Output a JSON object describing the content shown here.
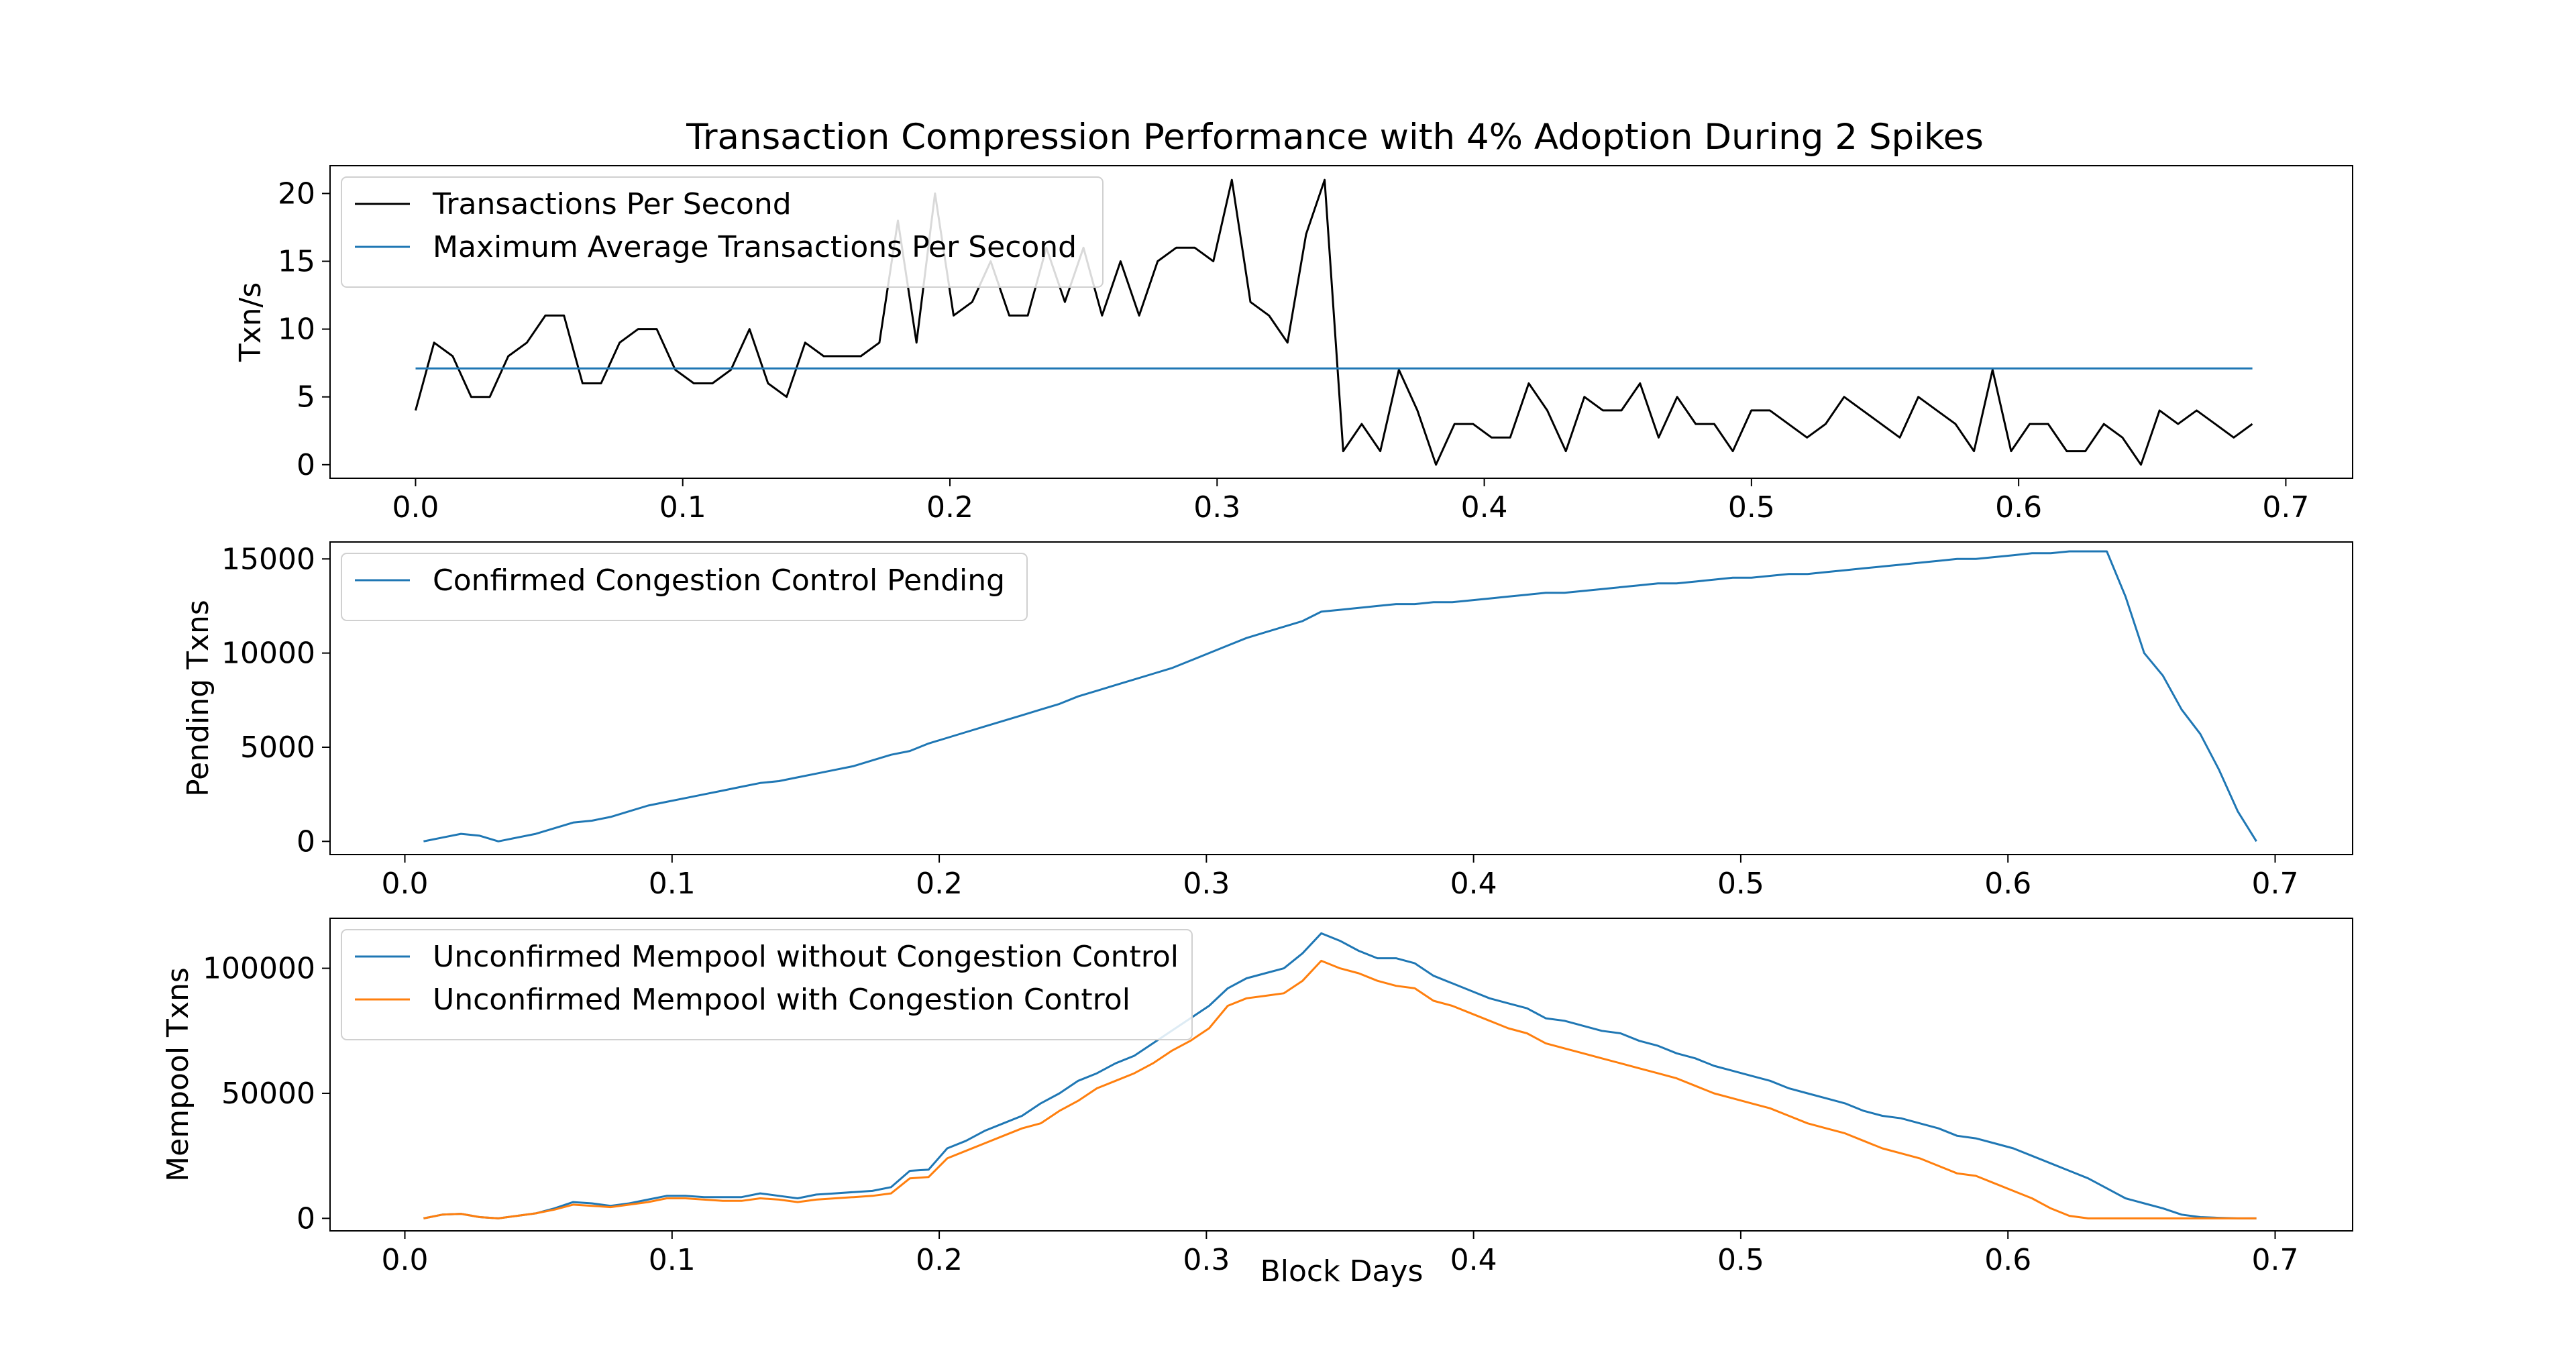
{
  "chart_data": {
    "title": "Transaction Compression Performance with 4% Adoption During 2 Spikes",
    "subplots": [
      {
        "type": "line",
        "ylabel": "Txn/s",
        "xlim": [
          -0.032,
          0.725
        ],
        "ylim": [
          -1.0,
          22.05
        ],
        "xticks": [
          0.0,
          0.1,
          0.2,
          0.3,
          0.4,
          0.5,
          0.6,
          0.7
        ],
        "xtick_labels": [
          "0.0",
          "0.1",
          "0.2",
          "0.3",
          "0.4",
          "0.5",
          "0.6",
          "0.7"
        ],
        "yticks": [
          0,
          5,
          10,
          15,
          20
        ],
        "ytick_labels": [
          "0",
          "5",
          "10",
          "15",
          "20"
        ],
        "legend_position": "upper-left",
        "series": [
          {
            "name": "Transactions Per Second",
            "color": "#000000",
            "x0": 0.0,
            "dx": 0.006944,
            "values": [
              4,
              9,
              8,
              5,
              5,
              8,
              9,
              11,
              11,
              6,
              6,
              9,
              10,
              10,
              7,
              6,
              6,
              7,
              10,
              6,
              5,
              9,
              8,
              8,
              8,
              9,
              18,
              9,
              20,
              11,
              12,
              15,
              11,
              11,
              16,
              12,
              16,
              11,
              15,
              11,
              15,
              16,
              16,
              15,
              21,
              12,
              11,
              9,
              17,
              21,
              1,
              3,
              1,
              7,
              4,
              0,
              3,
              3,
              2,
              2,
              6,
              4,
              1,
              5,
              4,
              4,
              6,
              2,
              5,
              3,
              3,
              1,
              4,
              4,
              3,
              2,
              3,
              5,
              4,
              3,
              2,
              5,
              4,
              3,
              1,
              7,
              1,
              3,
              3,
              1,
              1,
              3,
              2,
              0,
              4,
              3,
              4,
              3,
              2,
              3
            ]
          },
          {
            "name": "Maximum Average Transactions Per Second",
            "color": "#1f77b4",
            "x": [
              0.0,
              0.6875
            ],
            "values": [
              7.1,
              7.1
            ]
          }
        ]
      },
      {
        "type": "line",
        "ylabel": "Pending Txns",
        "xlim": [
          -0.028,
          0.729
        ],
        "ylim": [
          -700,
          15900
        ],
        "xticks": [
          0.0,
          0.1,
          0.2,
          0.3,
          0.4,
          0.5,
          0.6,
          0.7
        ],
        "xtick_labels": [
          "0.0",
          "0.1",
          "0.2",
          "0.3",
          "0.4",
          "0.5",
          "0.6",
          "0.7"
        ],
        "yticks": [
          0,
          5000,
          10000,
          15000
        ],
        "ytick_labels": [
          "0",
          "5000",
          "10000",
          "15000"
        ],
        "legend_position": "upper-left",
        "series": [
          {
            "name": "Confirmed Congestion Control Pending",
            "color": "#1f77b4",
            "x": [
              0.007,
              0.014,
              0.021,
              0.028,
              0.035,
              0.042,
              0.049,
              0.056,
              0.063,
              0.07,
              0.077,
              0.084,
              0.091,
              0.098,
              0.105,
              0.112,
              0.119,
              0.126,
              0.133,
              0.14,
              0.147,
              0.154,
              0.161,
              0.168,
              0.175,
              0.182,
              0.189,
              0.196,
              0.203,
              0.21,
              0.217,
              0.224,
              0.231,
              0.238,
              0.245,
              0.252,
              0.259,
              0.266,
              0.273,
              0.28,
              0.287,
              0.294,
              0.301,
              0.308,
              0.315,
              0.322,
              0.329,
              0.336,
              0.343,
              0.35,
              0.357,
              0.364,
              0.371,
              0.378,
              0.385,
              0.392,
              0.399,
              0.406,
              0.413,
              0.42,
              0.427,
              0.434,
              0.441,
              0.448,
              0.455,
              0.462,
              0.469,
              0.476,
              0.483,
              0.49,
              0.497,
              0.504,
              0.511,
              0.518,
              0.525,
              0.532,
              0.539,
              0.546,
              0.553,
              0.56,
              0.567,
              0.574,
              0.581,
              0.588,
              0.595,
              0.602,
              0.609,
              0.616,
              0.623,
              0.63,
              0.637,
              0.644,
              0.651,
              0.658,
              0.665,
              0.672,
              0.679,
              0.686,
              0.693
            ],
            "values": [
              0,
              200,
              400,
              300,
              0,
              200,
              400,
              700,
              1000,
              1100,
              1300,
              1600,
              1900,
              2100,
              2300,
              2500,
              2700,
              2900,
              3100,
              3200,
              3400,
              3600,
              3800,
              4000,
              4300,
              4600,
              4800,
              5200,
              5500,
              5800,
              6100,
              6400,
              6700,
              7000,
              7300,
              7700,
              8000,
              8300,
              8600,
              8900,
              9200,
              9600,
              10000,
              10400,
              10800,
              11100,
              11400,
              11700,
              12200,
              12300,
              12400,
              12500,
              12600,
              12600,
              12700,
              12700,
              12800,
              12900,
              13000,
              13100,
              13200,
              13200,
              13300,
              13400,
              13500,
              13600,
              13700,
              13700,
              13800,
              13900,
              14000,
              14000,
              14100,
              14200,
              14200,
              14300,
              14400,
              14500,
              14600,
              14700,
              14800,
              14900,
              15000,
              15000,
              15100,
              15200,
              15300,
              15300,
              15400,
              15400,
              15400,
              13000,
              10000,
              8800,
              7000,
              5700,
              3800,
              1600,
              0
            ]
          }
        ]
      },
      {
        "type": "line",
        "ylabel": "Mempool Txns",
        "xlabel": "Block Days",
        "xlim": [
          -0.028,
          0.729
        ],
        "ylim": [
          -5000,
          120000
        ],
        "xticks": [
          0.0,
          0.1,
          0.2,
          0.3,
          0.4,
          0.5,
          0.6,
          0.7
        ],
        "xtick_labels": [
          "0.0",
          "0.1",
          "0.2",
          "0.3",
          "0.4",
          "0.5",
          "0.6",
          "0.7"
        ],
        "yticks": [
          0,
          50000,
          100000
        ],
        "ytick_labels": [
          "0",
          "50000",
          "100000"
        ],
        "legend_position": "upper-left",
        "series": [
          {
            "name": "Unconfirmed Mempool without Congestion Control",
            "color": "#1f77b4",
            "x": [
              0.007,
              0.014,
              0.021,
              0.028,
              0.035,
              0.042,
              0.049,
              0.056,
              0.063,
              0.07,
              0.077,
              0.084,
              0.091,
              0.098,
              0.105,
              0.112,
              0.119,
              0.126,
              0.133,
              0.14,
              0.147,
              0.154,
              0.161,
              0.168,
              0.175,
              0.182,
              0.189,
              0.196,
              0.203,
              0.21,
              0.217,
              0.224,
              0.231,
              0.238,
              0.245,
              0.252,
              0.259,
              0.266,
              0.273,
              0.28,
              0.287,
              0.294,
              0.301,
              0.308,
              0.315,
              0.322,
              0.329,
              0.336,
              0.343,
              0.35,
              0.357,
              0.364,
              0.371,
              0.378,
              0.385,
              0.392,
              0.399,
              0.406,
              0.413,
              0.42,
              0.427,
              0.434,
              0.441,
              0.448,
              0.455,
              0.462,
              0.469,
              0.476,
              0.483,
              0.49,
              0.497,
              0.504,
              0.511,
              0.518,
              0.525,
              0.532,
              0.539,
              0.546,
              0.553,
              0.56,
              0.567,
              0.574,
              0.581,
              0.588,
              0.595,
              0.602,
              0.609,
              0.616,
              0.623,
              0.63,
              0.637,
              0.644,
              0.651,
              0.658,
              0.665,
              0.672,
              0.679,
              0.686,
              0.693
            ],
            "values": [
              0,
              1500,
              1800,
              500,
              0,
              1000,
              2000,
              4000,
              6500,
              6000,
              5000,
              6000,
              7500,
              9000,
              9000,
              8500,
              8500,
              8500,
              10000,
              9000,
              8000,
              9500,
              10000,
              10500,
              11000,
              12500,
              19000,
              19500,
              28000,
              31000,
              35000,
              38000,
              41000,
              46000,
              50000,
              55000,
              58000,
              62000,
              65000,
              70000,
              75000,
              80000,
              85000,
              92000,
              96000,
              98000,
              100000,
              106000,
              114000,
              111000,
              107000,
              104000,
              104000,
              102000,
              97000,
              94000,
              91000,
              88000,
              86000,
              84000,
              80000,
              79000,
              77000,
              75000,
              74000,
              71000,
              69000,
              66000,
              64000,
              61000,
              59000,
              57000,
              55000,
              52000,
              50000,
              48000,
              46000,
              43000,
              41000,
              40000,
              38000,
              36000,
              33000,
              32000,
              30000,
              28000,
              25000,
              22000,
              19000,
              16000,
              12000,
              8000,
              6000,
              4000,
              1500,
              500,
              200,
              0,
              0
            ]
          },
          {
            "name": "Unconfirmed Mempool with Congestion Control",
            "color": "#ff7f0e",
            "x": [
              0.007,
              0.014,
              0.021,
              0.028,
              0.035,
              0.042,
              0.049,
              0.056,
              0.063,
              0.07,
              0.077,
              0.084,
              0.091,
              0.098,
              0.105,
              0.112,
              0.119,
              0.126,
              0.133,
              0.14,
              0.147,
              0.154,
              0.161,
              0.168,
              0.175,
              0.182,
              0.189,
              0.196,
              0.203,
              0.21,
              0.217,
              0.224,
              0.231,
              0.238,
              0.245,
              0.252,
              0.259,
              0.266,
              0.273,
              0.28,
              0.287,
              0.294,
              0.301,
              0.308,
              0.315,
              0.322,
              0.329,
              0.336,
              0.343,
              0.35,
              0.357,
              0.364,
              0.371,
              0.378,
              0.385,
              0.392,
              0.399,
              0.406,
              0.413,
              0.42,
              0.427,
              0.434,
              0.441,
              0.448,
              0.455,
              0.462,
              0.469,
              0.476,
              0.483,
              0.49,
              0.497,
              0.504,
              0.511,
              0.518,
              0.525,
              0.532,
              0.539,
              0.546,
              0.553,
              0.56,
              0.567,
              0.574,
              0.581,
              0.588,
              0.595,
              0.602,
              0.609,
              0.616,
              0.623,
              0.63,
              0.637,
              0.644,
              0.651,
              0.658,
              0.665,
              0.672,
              0.679,
              0.686,
              0.693
            ],
            "values": [
              0,
              1500,
              1800,
              500,
              0,
              1000,
              2000,
              3500,
              5500,
              5000,
              4500,
              5500,
              6500,
              8000,
              8000,
              7500,
              7000,
              7000,
              8000,
              7500,
              6500,
              7500,
              8000,
              8500,
              9000,
              10000,
              16000,
              16500,
              24000,
              27000,
              30000,
              33000,
              36000,
              38000,
              43000,
              47000,
              52000,
              55000,
              58000,
              62000,
              67000,
              71000,
              76000,
              85000,
              88000,
              89000,
              90000,
              95000,
              103000,
              100000,
              98000,
              95000,
              93000,
              92000,
              87000,
              85000,
              82000,
              79000,
              76000,
              74000,
              70000,
              68000,
              66000,
              64000,
              62000,
              60000,
              58000,
              56000,
              53000,
              50000,
              48000,
              46000,
              44000,
              41000,
              38000,
              36000,
              34000,
              31000,
              28000,
              26000,
              24000,
              21000,
              18000,
              17000,
              14000,
              11000,
              8000,
              4000,
              1000,
              0,
              0,
              0,
              0,
              0,
              0,
              0,
              0,
              0,
              0
            ]
          }
        ]
      }
    ]
  }
}
